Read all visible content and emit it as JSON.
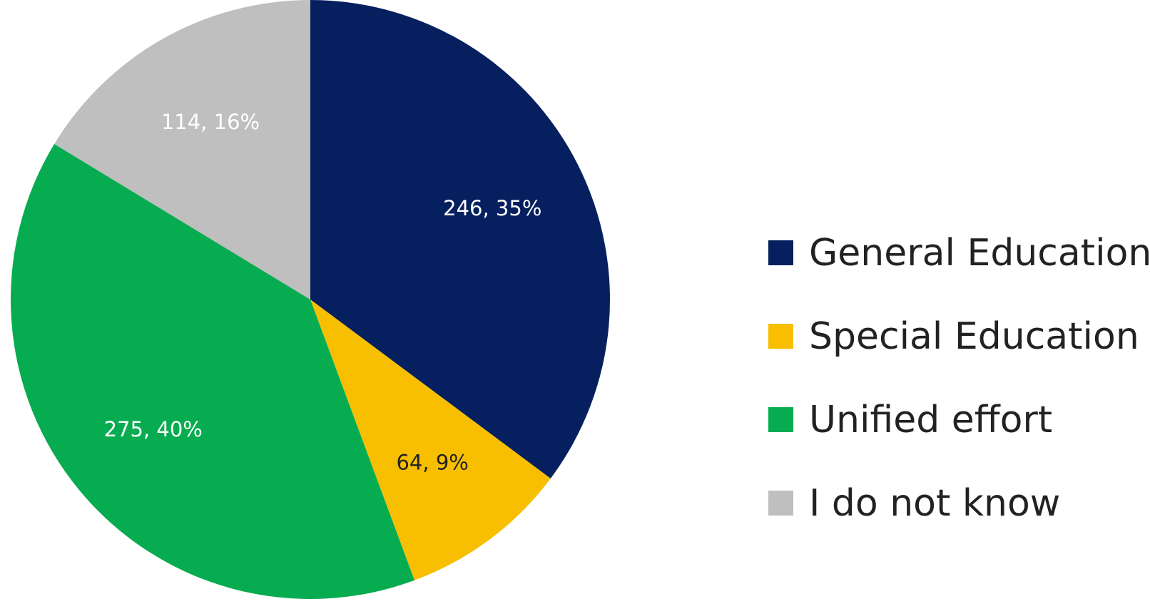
{
  "chart_data": {
    "type": "pie",
    "title": "",
    "start_angle": 0,
    "direction": "clockwise",
    "legend_position": "right",
    "categories": [
      "General Education",
      "Special Education",
      "Unified effort",
      "I do not know"
    ],
    "values": [
      246,
      64,
      275,
      114
    ],
    "percents": [
      35,
      9,
      40,
      16
    ],
    "colors": [
      "#061f5e",
      "#f8bf00",
      "#07ac50",
      "#bfbfbf"
    ],
    "data_labels": [
      "246, 35%",
      "64, 9%",
      "275, 40%",
      "114, 16%"
    ],
    "label_colors": [
      "#ffffff",
      "#222222",
      "#ffffff",
      "#ffffff"
    ]
  }
}
